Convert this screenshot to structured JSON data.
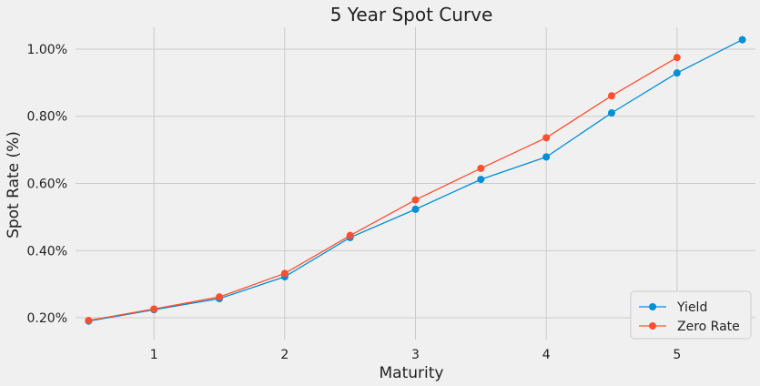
{
  "chart_data": {
    "type": "line",
    "title": "5 Year Spot Curve",
    "xlabel": "Maturity",
    "ylabel": "Spot Rate (%)",
    "xlim": [
      0.4,
      5.6
    ],
    "ylim": [
      0.135,
      1.065
    ],
    "xticks": [
      1,
      2,
      3,
      4,
      5
    ],
    "xtick_labels": [
      "1",
      "2",
      "3",
      "4",
      "5"
    ],
    "yticks": [
      0.2,
      0.4,
      0.6,
      0.8,
      1.0
    ],
    "ytick_labels": [
      "0.20%",
      "0.40%",
      "0.60%",
      "0.80%",
      "1.00%"
    ],
    "grid": true,
    "legend_position": "bottom-right",
    "series": [
      {
        "name": "Yield",
        "color": "#008fd5",
        "x": [
          0.5,
          1.0,
          1.5,
          2.0,
          2.5,
          3.0,
          3.5,
          4.0,
          4.5,
          5.0,
          5.5
        ],
        "y": [
          0.19,
          0.224,
          0.257,
          0.322,
          0.439,
          0.523,
          0.612,
          0.679,
          0.81,
          0.929,
          1.028
        ]
      },
      {
        "name": "Zero Rate",
        "color": "#fc4f30",
        "x": [
          0.5,
          1.0,
          1.5,
          2.0,
          2.5,
          3.0,
          3.5,
          4.0,
          4.5,
          5.0
        ],
        "y": [
          0.192,
          0.226,
          0.262,
          0.332,
          0.445,
          0.551,
          0.645,
          0.736,
          0.861,
          0.975
        ]
      }
    ]
  }
}
